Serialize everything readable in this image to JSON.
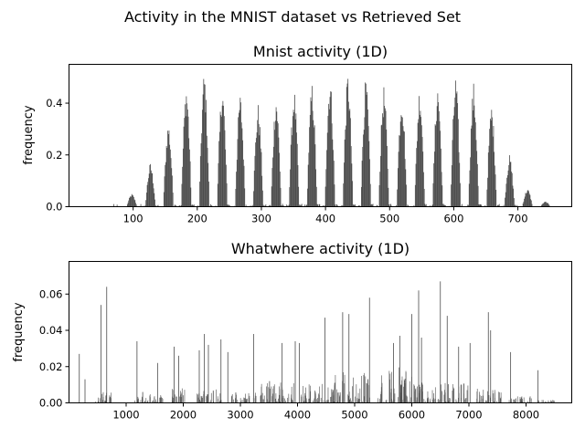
{
  "figure_title": "Activity in the MNIST dataset vs Retrieved Set",
  "colors": {
    "bar": "#4d4d4d",
    "axis": "#000000",
    "background": "#ffffff"
  },
  "chart_data": [
    {
      "type": "bar",
      "title": "Mnist activity (1D)",
      "xlabel": "",
      "ylabel": "frequency",
      "xlim": [
        0,
        784
      ],
      "ylim": [
        0,
        0.55
      ],
      "xticks": [
        100,
        200,
        300,
        400,
        500,
        600,
        700
      ],
      "yticks": [
        0.0,
        0.2,
        0.4
      ],
      "grid": false,
      "legend": "none",
      "pattern": {
        "row_centers": [
          98,
          127,
          155,
          183,
          211,
          239,
          267,
          295,
          323,
          351,
          379,
          407,
          435,
          463,
          491,
          519,
          547,
          575,
          603,
          631,
          659,
          687,
          715,
          743
        ],
        "row_peaks": [
          0.05,
          0.17,
          0.33,
          0.48,
          0.53,
          0.48,
          0.44,
          0.4,
          0.44,
          0.46,
          0.48,
          0.51,
          0.52,
          0.5,
          0.47,
          0.45,
          0.47,
          0.48,
          0.51,
          0.48,
          0.4,
          0.2,
          0.07,
          0.02
        ],
        "row_halfwidth": 7,
        "extra_bins": [
          {
            "x": 70,
            "y": 0.01
          },
          {
            "x": 75,
            "y": 0.008
          },
          {
            "x": 112,
            "y": 0.01
          }
        ]
      }
    },
    {
      "type": "bar",
      "title": "Whatwhere activity (1D)",
      "xlabel": "",
      "ylabel": "frequency",
      "xlim": [
        0,
        8800
      ],
      "ylim": [
        0,
        0.078
      ],
      "xticks": [
        1000,
        2000,
        3000,
        4000,
        5000,
        6000,
        7000,
        8000
      ],
      "yticks": [
        0.0,
        0.02,
        0.04,
        0.06
      ],
      "grid": false,
      "legend": "none",
      "peaks": [
        {
          "x": 180,
          "y": 0.027
        },
        {
          "x": 280,
          "y": 0.013
        },
        {
          "x": 560,
          "y": 0.054
        },
        {
          "x": 660,
          "y": 0.064
        },
        {
          "x": 1190,
          "y": 0.034
        },
        {
          "x": 1290,
          "y": 0.006
        },
        {
          "x": 1550,
          "y": 0.022
        },
        {
          "x": 1840,
          "y": 0.031
        },
        {
          "x": 1920,
          "y": 0.026
        },
        {
          "x": 2280,
          "y": 0.029
        },
        {
          "x": 2370,
          "y": 0.038
        },
        {
          "x": 2440,
          "y": 0.032
        },
        {
          "x": 2660,
          "y": 0.035
        },
        {
          "x": 2780,
          "y": 0.028
        },
        {
          "x": 3230,
          "y": 0.038
        },
        {
          "x": 3510,
          "y": 0.012
        },
        {
          "x": 3730,
          "y": 0.033
        },
        {
          "x": 3960,
          "y": 0.034
        },
        {
          "x": 4030,
          "y": 0.033
        },
        {
          "x": 4480,
          "y": 0.047
        },
        {
          "x": 4790,
          "y": 0.05
        },
        {
          "x": 4900,
          "y": 0.049
        },
        {
          "x": 5260,
          "y": 0.058
        },
        {
          "x": 5680,
          "y": 0.033
        },
        {
          "x": 5790,
          "y": 0.037
        },
        {
          "x": 6000,
          "y": 0.049
        },
        {
          "x": 6120,
          "y": 0.062
        },
        {
          "x": 6170,
          "y": 0.036
        },
        {
          "x": 6500,
          "y": 0.067
        },
        {
          "x": 6620,
          "y": 0.048
        },
        {
          "x": 6820,
          "y": 0.031
        },
        {
          "x": 7020,
          "y": 0.033
        },
        {
          "x": 7340,
          "y": 0.05
        },
        {
          "x": 7380,
          "y": 0.04
        },
        {
          "x": 7730,
          "y": 0.028
        },
        {
          "x": 8210,
          "y": 0.018
        }
      ],
      "clusters": [
        {
          "center": 600,
          "width": 280,
          "max": 0.006
        },
        {
          "center": 1400,
          "width": 500,
          "max": 0.005
        },
        {
          "center": 1950,
          "width": 300,
          "max": 0.009
        },
        {
          "center": 2450,
          "width": 450,
          "max": 0.008
        },
        {
          "center": 3050,
          "width": 450,
          "max": 0.006
        },
        {
          "center": 3650,
          "width": 600,
          "max": 0.012
        },
        {
          "center": 4350,
          "width": 600,
          "max": 0.011
        },
        {
          "center": 4950,
          "width": 650,
          "max": 0.017
        },
        {
          "center": 5700,
          "width": 600,
          "max": 0.021
        },
        {
          "center": 6250,
          "width": 550,
          "max": 0.013
        },
        {
          "center": 6750,
          "width": 500,
          "max": 0.011
        },
        {
          "center": 7350,
          "width": 450,
          "max": 0.008
        },
        {
          "center": 7900,
          "width": 400,
          "max": 0.004
        },
        {
          "center": 8350,
          "width": 300,
          "max": 0.002
        }
      ]
    }
  ]
}
